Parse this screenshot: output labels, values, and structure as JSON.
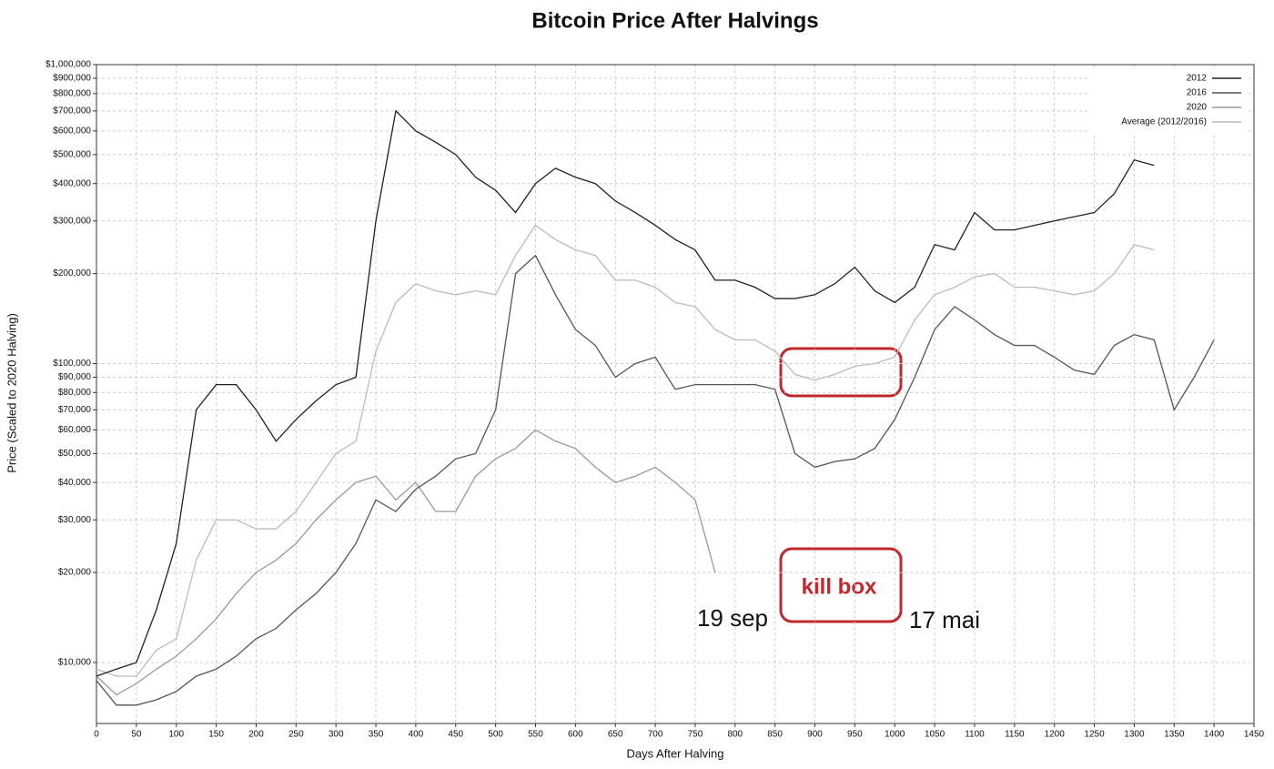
{
  "chart_data": {
    "type": "line",
    "title": "Bitcoin Price After Halvings",
    "x_label": "Days After Halving",
    "y_label": "Price (Scaled to 2020 Halving)",
    "log_y": true,
    "grid": true,
    "legend": "top-right",
    "xlim": [
      0,
      1450
    ],
    "xticks": [
      0,
      50,
      100,
      150,
      200,
      250,
      300,
      350,
      400,
      450,
      500,
      550,
      600,
      650,
      700,
      750,
      800,
      850,
      900,
      950,
      1000,
      1050,
      1100,
      1150,
      1200,
      1250,
      1300,
      1350,
      1400,
      1450
    ],
    "ylim": [
      6250,
      1000000
    ],
    "yticks": [
      {
        "value": 10000,
        "label": "$10,000"
      },
      {
        "value": 20000,
        "label": "$20,000"
      },
      {
        "value": 30000,
        "label": "$30,000"
      },
      {
        "value": 40000,
        "label": "$40,000"
      },
      {
        "value": 50000,
        "label": "$50,000"
      },
      {
        "value": 60000,
        "label": "$60,000"
      },
      {
        "value": 70000,
        "label": "$70,000"
      },
      {
        "value": 80000,
        "label": "$80,000"
      },
      {
        "value": 90000,
        "label": "$90,000"
      },
      {
        "value": 100000,
        "label": "$100,000"
      },
      {
        "value": 200000,
        "label": "$200,000"
      },
      {
        "value": 300000,
        "label": "$300,000"
      },
      {
        "value": 400000,
        "label": "$400,000"
      },
      {
        "value": 500000,
        "label": "$500,000"
      },
      {
        "value": 600000,
        "label": "$600,000"
      },
      {
        "value": 700000,
        "label": "$700,000"
      },
      {
        "value": 800000,
        "label": "$800,000"
      },
      {
        "value": 900000,
        "label": "$900,000"
      },
      {
        "value": 1000000,
        "label": "$1,000,000"
      }
    ],
    "x": [
      0,
      25,
      50,
      75,
      100,
      125,
      150,
      175,
      200,
      225,
      250,
      275,
      300,
      325,
      350,
      375,
      400,
      425,
      450,
      475,
      500,
      525,
      550,
      575,
      600,
      625,
      650,
      675,
      700,
      725,
      750,
      775,
      800,
      825,
      850,
      875,
      900,
      925,
      950,
      975,
      1000,
      1025,
      1050,
      1075,
      1100,
      1125,
      1150,
      1175,
      1200,
      1225,
      1250,
      1275,
      1300,
      1325,
      1350,
      1375,
      1400
    ],
    "series": [
      {
        "name": "2012",
        "color": "#222222",
        "values": [
          9000,
          9500,
          10000,
          15000,
          25000,
          70000,
          85000,
          85000,
          70000,
          55000,
          65000,
          75000,
          85000,
          90000,
          300000,
          700000,
          600000,
          550000,
          500000,
          420000,
          380000,
          320000,
          400000,
          450000,
          420000,
          400000,
          350000,
          320000,
          290000,
          260000,
          240000,
          190000,
          190000,
          180000,
          165000,
          165000,
          170000,
          185000,
          210000,
          175000,
          160000,
          180000,
          250000,
          240000,
          320000,
          280000,
          280000,
          290000,
          300000,
          310000,
          320000,
          370000,
          480000,
          460000,
          null,
          null,
          null
        ]
      },
      {
        "name": "2016",
        "color": "#555555",
        "values": [
          8700,
          7200,
          7200,
          7500,
          8000,
          9000,
          9500,
          10500,
          12000,
          13000,
          15000,
          17000,
          20000,
          25000,
          35000,
          32000,
          38000,
          42000,
          48000,
          50000,
          70000,
          200000,
          230000,
          170000,
          130000,
          115000,
          90000,
          100000,
          105000,
          82000,
          85000,
          85000,
          85000,
          85000,
          82000,
          50000,
          45000,
          47000,
          48000,
          52000,
          65000,
          90000,
          130000,
          155000,
          140000,
          125000,
          115000,
          115000,
          105000,
          95000,
          92000,
          115000,
          125000,
          120000,
          70000,
          90000,
          120000
        ]
      },
      {
        "name": "2020",
        "color": "#999999",
        "values": [
          9000,
          7800,
          8500,
          9500,
          10500,
          12000,
          14000,
          17000,
          20000,
          22000,
          25000,
          30000,
          35000,
          40000,
          42000,
          35000,
          40000,
          32000,
          32000,
          42000,
          48000,
          52000,
          60000,
          55000,
          52000,
          45000,
          40000,
          42000,
          45000,
          40000,
          35000,
          20000,
          null,
          null,
          null,
          null,
          null,
          null,
          null,
          null,
          null,
          null,
          null,
          null,
          null,
          null,
          null,
          null,
          null,
          null,
          null,
          null,
          null,
          null,
          null,
          null,
          null
        ]
      },
      {
        "name": "Average (2012/2016)",
        "color": "#bbbbbb",
        "values": [
          9500,
          9000,
          9000,
          11000,
          12000,
          22000,
          30000,
          30000,
          28000,
          28000,
          32000,
          40000,
          50000,
          55000,
          110000,
          160000,
          185000,
          175000,
          170000,
          175000,
          170000,
          230000,
          290000,
          260000,
          240000,
          230000,
          190000,
          190000,
          180000,
          160000,
          155000,
          130000,
          120000,
          120000,
          110000,
          92000,
          88000,
          92000,
          98000,
          100000,
          105000,
          140000,
          170000,
          180000,
          195000,
          200000,
          180000,
          180000,
          175000,
          170000,
          175000,
          200000,
          250000,
          240000,
          null,
          null,
          null
        ]
      }
    ],
    "annotations": [
      "19 sep",
      "kill box",
      "17 mai"
    ]
  }
}
